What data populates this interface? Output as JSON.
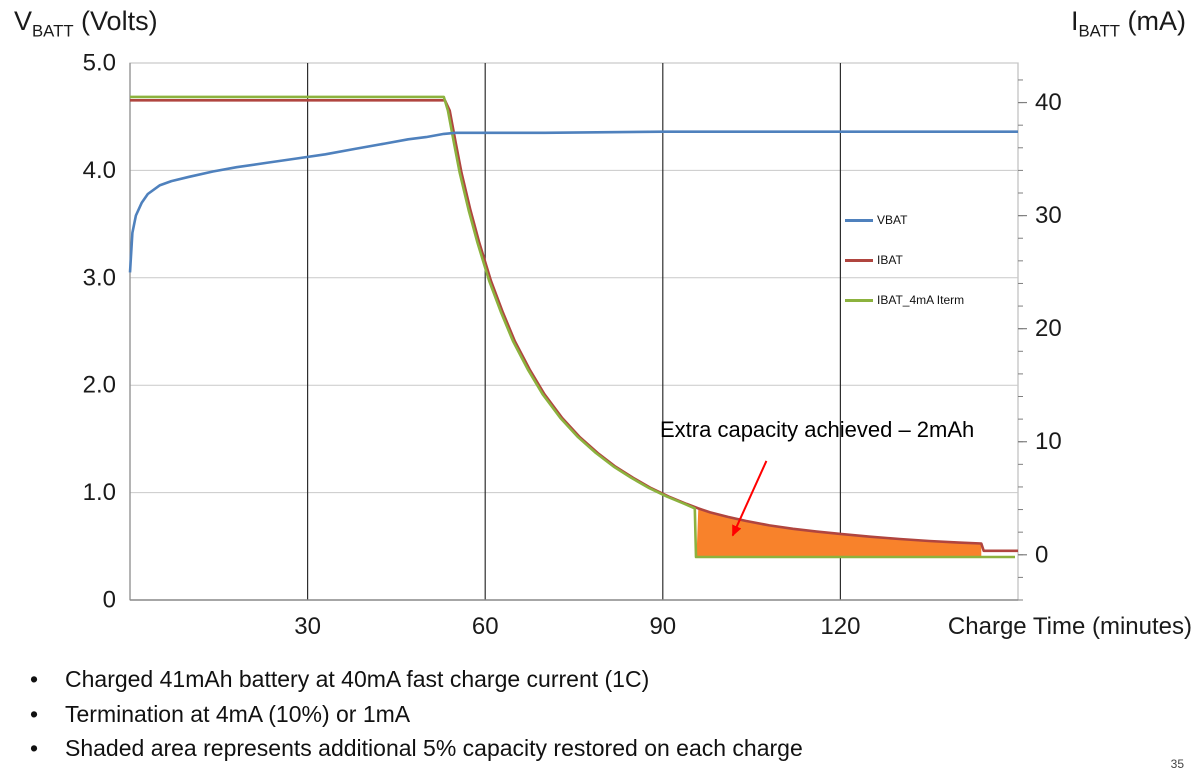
{
  "page": {
    "page_number": "35",
    "bullets": [
      "Charged 41mAh battery at 40mA fast charge current (1C)",
      "Termination at 4mA (10%) or 1mA",
      "Shaded area represents additional 5% capacity restored on each charge"
    ]
  },
  "axis_titles": {
    "left_main": "V",
    "left_sub": "BATT",
    "left_rest": " (Volts)",
    "right_main": "I",
    "right_sub": "BATT",
    "right_rest": " (mA)"
  },
  "chart_data": {
    "type": "line",
    "title": "",
    "x_axis": {
      "label": "Charge Time (minutes)",
      "min": 0,
      "max": 150,
      "ticks": [
        {
          "v": 30,
          "label": "30"
        },
        {
          "v": 60,
          "label": "60"
        },
        {
          "v": 90,
          "label": "90"
        },
        {
          "v": 120,
          "label": "120"
        }
      ]
    },
    "y_left_axis": {
      "label": "VBATT (Volts)",
      "min": 0,
      "max": 5,
      "ticks": [
        {
          "v": 0,
          "label": "0"
        },
        {
          "v": 1,
          "label": "1.0"
        },
        {
          "v": 2,
          "label": "2.0"
        },
        {
          "v": 3,
          "label": "3.0"
        },
        {
          "v": 4,
          "label": "4.0"
        },
        {
          "v": 5,
          "label": "5.0"
        }
      ]
    },
    "y_right_axis": {
      "label": "IBATT (mA)",
      "min": -4,
      "max": 43.5,
      "minor_tick_step": 2,
      "major_ticks": [
        {
          "v": 0,
          "label": "0"
        },
        {
          "v": 10,
          "label": "10"
        },
        {
          "v": 20,
          "label": "20"
        },
        {
          "v": 30,
          "label": "30"
        },
        {
          "v": 40,
          "label": "40"
        }
      ]
    },
    "grid": {
      "h_color": "#c9c9c9",
      "v_color": "#2e2e2e",
      "border_color": "#bfbfbf"
    },
    "series": [
      {
        "name": "VBAT",
        "axis": "left",
        "color": "#4f81bd",
        "points": [
          [
            0,
            3.05
          ],
          [
            0.4,
            3.42
          ],
          [
            1,
            3.58
          ],
          [
            2,
            3.7
          ],
          [
            3,
            3.78
          ],
          [
            5,
            3.86
          ],
          [
            7,
            3.9
          ],
          [
            10,
            3.94
          ],
          [
            14,
            3.99
          ],
          [
            18,
            4.03
          ],
          [
            23,
            4.07
          ],
          [
            28,
            4.11
          ],
          [
            33,
            4.15
          ],
          [
            38,
            4.2
          ],
          [
            43,
            4.25
          ],
          [
            47,
            4.29
          ],
          [
            50,
            4.31
          ],
          [
            53,
            4.34
          ],
          [
            55,
            4.35
          ],
          [
            70,
            4.35
          ],
          [
            90,
            4.36
          ],
          [
            120,
            4.36
          ],
          [
            150,
            4.36
          ]
        ]
      },
      {
        "name": "IBAT",
        "axis": "right",
        "color": "#b0453f",
        "points": [
          [
            0,
            40.2
          ],
          [
            53.2,
            40.2
          ],
          [
            54,
            39.3
          ],
          [
            55,
            36.5
          ],
          [
            56,
            33.8
          ],
          [
            57.5,
            30.5
          ],
          [
            59,
            27.6
          ],
          [
            61,
            24.2
          ],
          [
            63,
            21.4
          ],
          [
            65,
            18.9
          ],
          [
            67.5,
            16.4
          ],
          [
            70,
            14.2
          ],
          [
            73,
            12.1
          ],
          [
            76,
            10.4
          ],
          [
            79,
            9
          ],
          [
            82,
            7.8
          ],
          [
            85,
            6.8
          ],
          [
            88,
            5.9
          ],
          [
            91,
            5.15
          ],
          [
            94,
            4.5
          ],
          [
            96,
            4.1
          ],
          [
            98,
            3.75
          ],
          [
            101,
            3.35
          ],
          [
            104,
            3
          ],
          [
            108,
            2.6
          ],
          [
            112,
            2.3
          ],
          [
            116,
            2.05
          ],
          [
            120,
            1.85
          ],
          [
            125,
            1.6
          ],
          [
            130,
            1.4
          ],
          [
            135,
            1.22
          ],
          [
            140,
            1.08
          ],
          [
            143.8,
            1
          ],
          [
            144.2,
            0.35
          ],
          [
            150,
            0.35
          ]
        ]
      },
      {
        "name": "IBAT_4mA Iterm",
        "axis": "right",
        "color": "#8cb23e",
        "points": [
          [
            0,
            40.5
          ],
          [
            53,
            40.5
          ],
          [
            53.7,
            39.3
          ],
          [
            54.7,
            36.5
          ],
          [
            55.7,
            33.8
          ],
          [
            57.2,
            30.5
          ],
          [
            58.7,
            27.6
          ],
          [
            60.7,
            24.2
          ],
          [
            62.7,
            21.4
          ],
          [
            64.7,
            18.9
          ],
          [
            67.2,
            16.4
          ],
          [
            69.7,
            14.2
          ],
          [
            72.7,
            12.1
          ],
          [
            75.7,
            10.4
          ],
          [
            78.7,
            9
          ],
          [
            81.7,
            7.8
          ],
          [
            84.7,
            6.8
          ],
          [
            87.7,
            5.9
          ],
          [
            90.7,
            5.15
          ],
          [
            93.7,
            4.5
          ],
          [
            95.4,
            4.1
          ],
          [
            95.6,
            -0.2
          ],
          [
            149.5,
            -0.2
          ]
        ]
      }
    ],
    "shaded_area": {
      "color": "#f8822b",
      "t_start": 95.7,
      "t_end": 143.8,
      "baseline": -0.2
    },
    "annotation": {
      "text": "Extra capacity achieved – 2mAh",
      "arrow_color": "#ff0000",
      "arrow_from": [
        107.5,
        8.3
      ],
      "arrow_to": [
        101.8,
        1.7
      ]
    },
    "legend": {
      "position": "middle-right",
      "entries": [
        "VBAT",
        "IBAT",
        "IBAT_4mA Iterm"
      ]
    }
  }
}
